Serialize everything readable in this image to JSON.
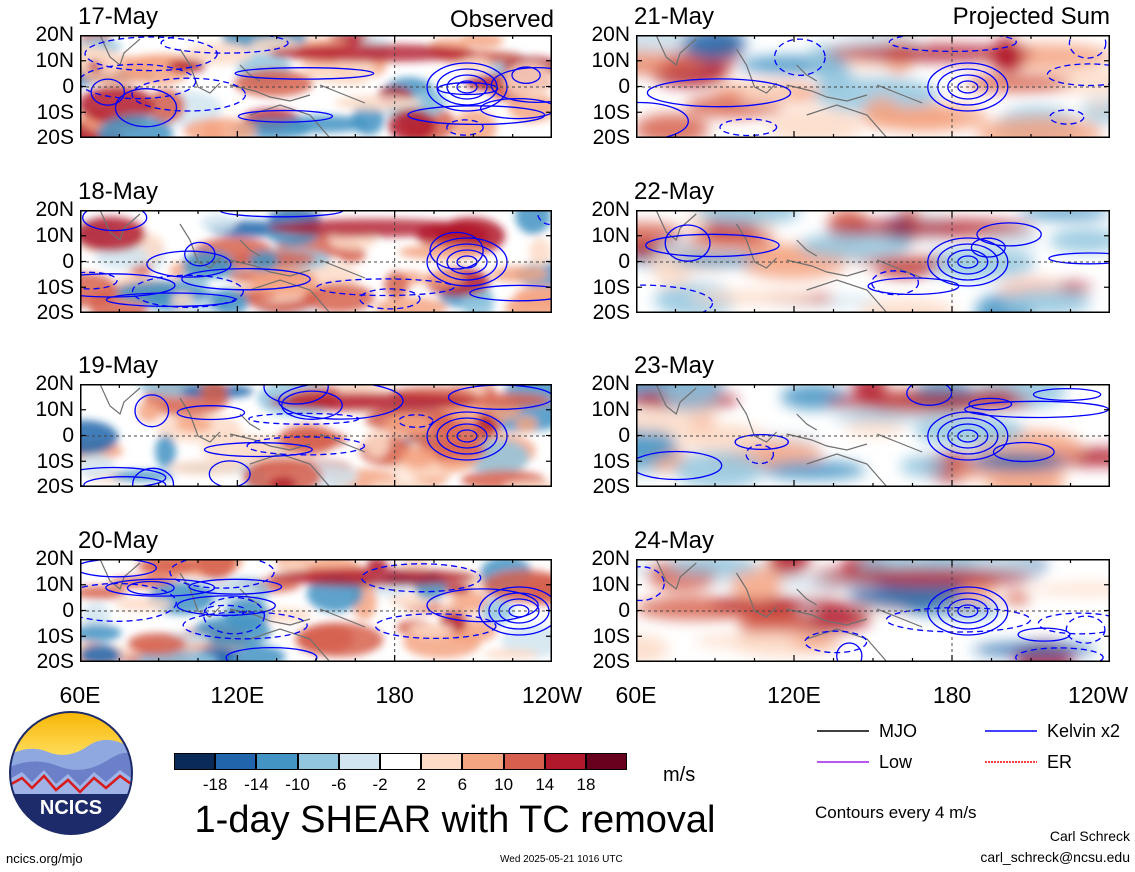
{
  "left_column_title": "Observed",
  "right_column_title": "Projected Sum",
  "left_panels": [
    {
      "date": "17-May"
    },
    {
      "date": "18-May"
    },
    {
      "date": "19-May"
    },
    {
      "date": "20-May"
    }
  ],
  "right_panels": [
    {
      "date": "21-May"
    },
    {
      "date": "22-May"
    },
    {
      "date": "23-May"
    },
    {
      "date": "24-May"
    }
  ],
  "lat_labels": [
    "20N",
    "10N",
    "0",
    "10S",
    "20S"
  ],
  "lon_labels": [
    "60E",
    "120E",
    "180",
    "120W"
  ],
  "colorbar": {
    "levels": [
      "-18",
      "-14",
      "-10",
      "-6",
      "-2",
      "2",
      "6",
      "10",
      "14",
      "18"
    ],
    "colors": [
      "#0a2a5a",
      "#2166ac",
      "#4393c3",
      "#92c5de",
      "#d1e5f0",
      "#ffffff",
      "#fddbc7",
      "#f4a582",
      "#d6604d",
      "#b2182b",
      "#67001f"
    ],
    "units": "m/s"
  },
  "main_title": "1-day SHEAR with TC removal",
  "legend": {
    "items": [
      {
        "label": "MJO",
        "color": "#000000"
      },
      {
        "label": "Kelvin x2",
        "color": "#0000ff"
      },
      {
        "label": "Low",
        "color": "#a020f0"
      },
      {
        "label": "ER",
        "color": "#ff0000"
      }
    ],
    "contour_note": "Contours every 4 m/s"
  },
  "logo_text": "NCICS",
  "footer": {
    "url": "ncics.org/mjo",
    "timestamp": "Wed 2025-05-21 1016 UTC",
    "author": "Carl Schreck",
    "email": "carl_schreck@ncsu.edu"
  }
}
